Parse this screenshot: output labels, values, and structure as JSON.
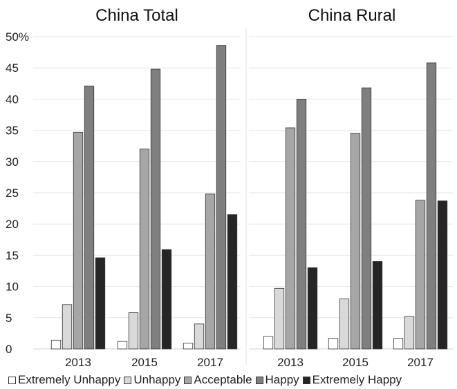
{
  "chart_data": [
    {
      "type": "bar",
      "title": "China Total",
      "categories": [
        "2013",
        "2015",
        "2017"
      ],
      "ylim": [
        0,
        50
      ],
      "yticks": [
        "0",
        "5",
        "10",
        "15",
        "20",
        "25",
        "30",
        "35",
        "40",
        "45",
        "50%"
      ],
      "grid": true,
      "series": [
        {
          "name": "Extremely Unhappy",
          "color": "#ffffff",
          "values": [
            1.4,
            1.2,
            0.9
          ]
        },
        {
          "name": "Unhappy",
          "color": "#d9d9d9",
          "values": [
            7.1,
            5.8,
            4.0
          ]
        },
        {
          "name": "Acceptable",
          "color": "#a6a6a6",
          "values": [
            34.7,
            32.0,
            24.8
          ]
        },
        {
          "name": "Happy",
          "color": "#7f7f7f",
          "values": [
            42.1,
            44.8,
            48.6
          ]
        },
        {
          "name": "Extremely Happy",
          "color": "#262626",
          "values": [
            14.6,
            15.9,
            21.5
          ]
        }
      ]
    },
    {
      "type": "bar",
      "title": "China Rural",
      "categories": [
        "2013",
        "2015",
        "2017"
      ],
      "ylim": [
        0,
        50
      ],
      "grid": true,
      "series": [
        {
          "name": "Extremely Unhappy",
          "color": "#ffffff",
          "values": [
            2.0,
            1.7,
            1.7
          ]
        },
        {
          "name": "Unhappy",
          "color": "#d9d9d9",
          "values": [
            9.7,
            8.0,
            5.2
          ]
        },
        {
          "name": "Acceptable",
          "color": "#a6a6a6",
          "values": [
            35.4,
            34.5,
            23.8
          ]
        },
        {
          "name": "Happy",
          "color": "#7f7f7f",
          "values": [
            40.0,
            41.8,
            45.8
          ]
        },
        {
          "name": "Extremely Happy",
          "color": "#262626",
          "values": [
            13.0,
            14.0,
            23.7
          ]
        }
      ]
    }
  ],
  "legend": {
    "placement": "bottom",
    "items": [
      {
        "label": "Extremely Unhappy",
        "color": "#ffffff"
      },
      {
        "label": "Unhappy",
        "color": "#d9d9d9"
      },
      {
        "label": "Acceptable",
        "color": "#a6a6a6"
      },
      {
        "label": "Happy",
        "color": "#7f7f7f"
      },
      {
        "label": "Extremely Happy",
        "color": "#262626"
      }
    ]
  }
}
